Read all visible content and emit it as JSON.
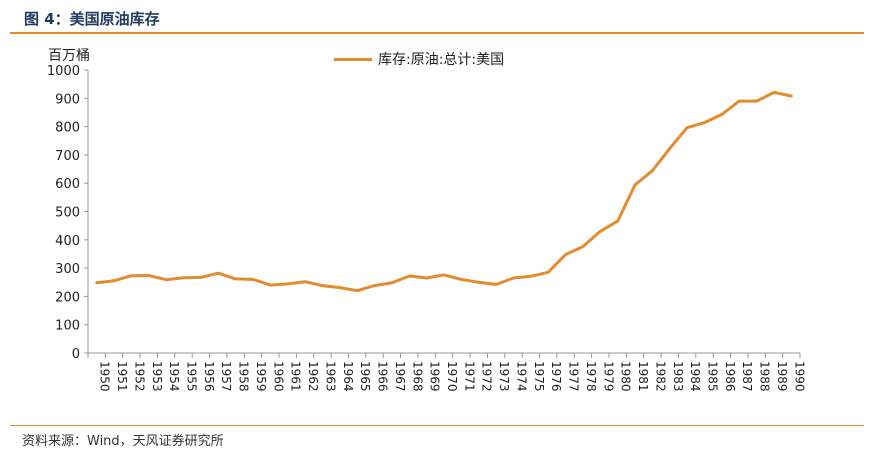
{
  "header": {
    "title": "图 4：美国原油库存"
  },
  "footer": {
    "source": "资料来源：Wind，天风证券研究所"
  },
  "colors": {
    "accent": "#e38b2d",
    "series": "#e38b2d",
    "axis": "#999999"
  },
  "chart_data": {
    "type": "line",
    "title": "",
    "ylabel": "百万桶",
    "xlabel": "",
    "ylim": [
      0,
      1000
    ],
    "yticks": [
      0,
      100,
      200,
      300,
      400,
      500,
      600,
      700,
      800,
      900,
      1000
    ],
    "grid": false,
    "legend_position": "top-center",
    "x": [
      "1950",
      "1951",
      "1952",
      "1953",
      "1954",
      "1955",
      "1956",
      "1957",
      "1958",
      "1959",
      "1960",
      "1961",
      "1962",
      "1963",
      "1964",
      "1965",
      "1966",
      "1967",
      "1968",
      "1969",
      "1970",
      "1971",
      "1972",
      "1973",
      "1974",
      "1975",
      "1976",
      "1977",
      "1978",
      "1979",
      "1980",
      "1981",
      "1982",
      "1983",
      "1984",
      "1985",
      "1986",
      "1987",
      "1988",
      "1989",
      "1990"
    ],
    "series": [
      {
        "name": "库存:原油:总计:美国",
        "values": [
          248,
          255,
          273,
          274,
          259,
          266,
          267,
          282,
          262,
          260,
          240,
          244,
          252,
          238,
          231,
          220,
          238,
          248,
          272,
          265,
          276,
          260,
          250,
          242,
          265,
          271,
          285,
          348,
          376,
          430,
          466,
          594,
          644,
          723,
          796,
          814,
          843,
          890,
          890,
          921,
          908
        ]
      }
    ]
  }
}
